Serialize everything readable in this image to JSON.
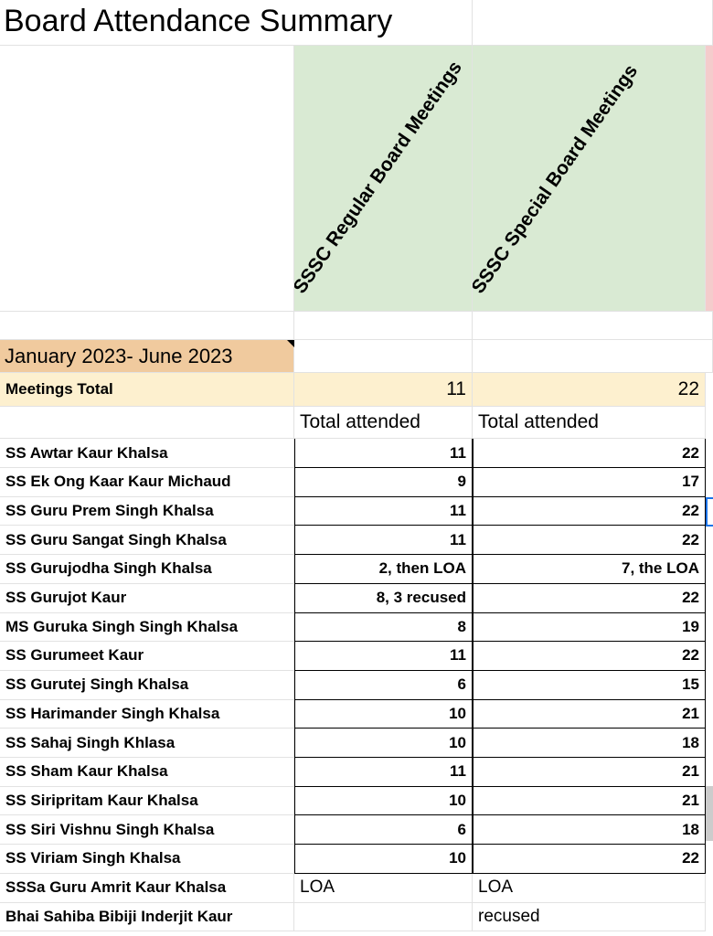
{
  "title": "Board Attendance Summary",
  "columns": [
    "SSSC Regular Board Meetings",
    "SSSC Special Board Meetings"
  ],
  "period": "January 2023- June 2023",
  "meetings_total": {
    "label": "Meetings Total",
    "regular": "11",
    "special": "22"
  },
  "subheader": [
    "Total attended",
    "Total attended"
  ],
  "rows": [
    {
      "name": "SS Awtar Kaur Khalsa",
      "regular": "11",
      "special": "22"
    },
    {
      "name": "SS Ek Ong Kaar Kaur Michaud",
      "regular": "9",
      "special": "17"
    },
    {
      "name": "SS Guru Prem Singh Khalsa",
      "regular": "11",
      "special": "22"
    },
    {
      "name": "SS Guru Sangat Singh Khalsa",
      "regular": "11",
      "special": "22"
    },
    {
      "name": "SS Gurujodha Singh Khalsa",
      "regular": "2, then LOA",
      "special": "7, the LOA"
    },
    {
      "name": "SS Gurujot Kaur",
      "regular": "8, 3 recused",
      "special": "22"
    },
    {
      "name": "MS Guruka Singh Singh Khalsa",
      "regular": "8",
      "special": "19"
    },
    {
      "name": "SS Gurumeet Kaur",
      "regular": "11",
      "special": "22"
    },
    {
      "name": "SS Gurutej Singh Khalsa",
      "regular": "6",
      "special": "15"
    },
    {
      "name": "SS Harimander Singh Khalsa",
      "regular": "10",
      "special": "21"
    },
    {
      "name": "SS Sahaj Singh Khlasa",
      "regular": "10",
      "special": "18"
    },
    {
      "name": "SS Sham Kaur Khalsa",
      "regular": "11",
      "special": "21"
    },
    {
      "name": "SS Siripritam Kaur Khalsa",
      "regular": "10",
      "special": "21"
    },
    {
      "name": "SS Siri Vishnu Singh Khalsa",
      "regular": "6",
      "special": "18"
    },
    {
      "name": "SS Viriam Singh Khalsa",
      "regular": "10",
      "special": "22"
    },
    {
      "name": "SSSa Guru Amrit Kaur Khalsa",
      "regular": "LOA",
      "special": "LOA",
      "left": true
    },
    {
      "name": "Bhai Sahiba Bibiji Inderjit Kaur",
      "regular": "",
      "special": "recused",
      "left": true
    }
  ],
  "colors": {
    "header_green": "#d9ead3",
    "period_orange": "#f0ca9e",
    "total_yellow": "#fdf0cf",
    "pink": "#f4cccc"
  }
}
